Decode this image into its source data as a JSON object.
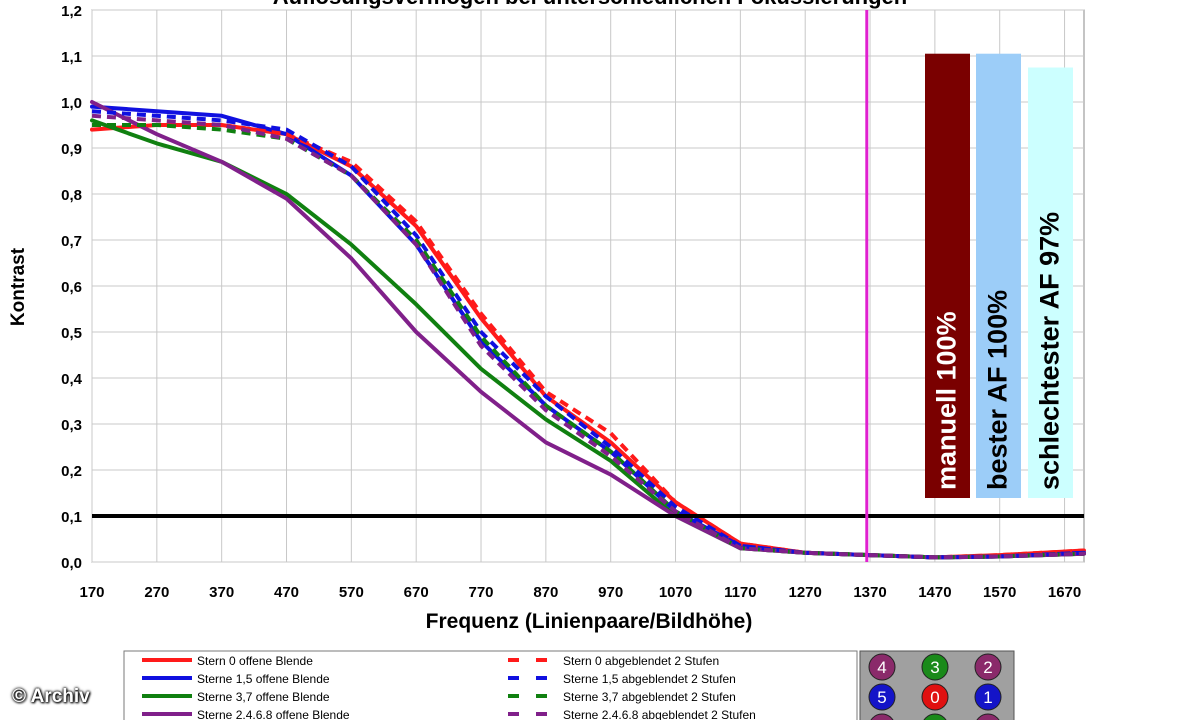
{
  "chart_data": {
    "type": "line",
    "title": "Auflösungsvermögen bei unterschiedlichen Fokussierungen",
    "xlabel": "Frequenz (Linienpaare/Bildhöhe)",
    "ylabel": "Kontrast",
    "xlim": [
      170,
      1700
    ],
    "ylim": [
      0,
      1.2
    ],
    "x_ticks": [
      "170",
      "270",
      "370",
      "470",
      "570",
      "670",
      "770",
      "870",
      "970",
      "1070",
      "1170",
      "1270",
      "1370",
      "1470",
      "1570",
      "1670"
    ],
    "y_ticks": [
      "0,0",
      "0,1",
      "0,2",
      "0,3",
      "0,4",
      "0,5",
      "0,6",
      "0,7",
      "0,8",
      "0,9",
      "1,0",
      "1,1",
      "1,2"
    ],
    "grid": true,
    "threshold_line": {
      "y": 0.1,
      "color": "#000000"
    },
    "marker_line": {
      "x": 1365,
      "color": "#e020d0"
    },
    "series": [
      {
        "name": "Stern 0 offene Blende",
        "color": "#ff1a1a",
        "style": "solid",
        "x": [
          170,
          270,
          370,
          470,
          570,
          670,
          770,
          870,
          970,
          1070,
          1170,
          1270,
          1370,
          1470,
          1570,
          1700
        ],
        "y": [
          0.94,
          0.95,
          0.95,
          0.93,
          0.86,
          0.73,
          0.53,
          0.36,
          0.26,
          0.13,
          0.04,
          0.02,
          0.015,
          0.01,
          0.015,
          0.025
        ]
      },
      {
        "name": "Sterne 1,5 offene Blende",
        "color": "#1010e0",
        "style": "solid",
        "x": [
          170,
          270,
          370,
          470,
          570,
          670,
          770,
          870,
          970,
          1070,
          1170,
          1270,
          1370,
          1470,
          1570,
          1700
        ],
        "y": [
          0.99,
          0.98,
          0.97,
          0.93,
          0.84,
          0.69,
          0.48,
          0.34,
          0.24,
          0.11,
          0.035,
          0.02,
          0.015,
          0.01,
          0.012,
          0.02
        ]
      },
      {
        "name": "Sterne 3,7 offene Blende",
        "color": "#108010",
        "style": "solid",
        "x": [
          170,
          270,
          370,
          470,
          570,
          670,
          770,
          870,
          970,
          1070,
          1170,
          1270,
          1370,
          1470,
          1570,
          1700
        ],
        "y": [
          0.96,
          0.91,
          0.87,
          0.8,
          0.69,
          0.56,
          0.42,
          0.31,
          0.22,
          0.1,
          0.03,
          0.02,
          0.015,
          0.01,
          0.012,
          0.018
        ]
      },
      {
        "name": "Sterne 2,4,6,8 offene Blende",
        "color": "#80208a",
        "style": "solid",
        "x": [
          170,
          270,
          370,
          470,
          570,
          670,
          770,
          870,
          970,
          1070,
          1170,
          1270,
          1370,
          1470,
          1570,
          1700
        ],
        "y": [
          1.0,
          0.93,
          0.87,
          0.79,
          0.66,
          0.5,
          0.37,
          0.26,
          0.19,
          0.1,
          0.03,
          0.02,
          0.015,
          0.01,
          0.012,
          0.018
        ]
      },
      {
        "name": "Stern 0 abgeblendet 2 Stufen",
        "color": "#ff1a1a",
        "style": "dashed",
        "x": [
          170,
          270,
          370,
          470,
          570,
          670,
          770,
          870,
          970,
          1070,
          1170,
          1270,
          1370,
          1470,
          1570,
          1700
        ],
        "y": [
          0.95,
          0.95,
          0.95,
          0.93,
          0.87,
          0.74,
          0.54,
          0.37,
          0.28,
          0.13,
          0.04,
          0.02,
          0.015,
          0.01,
          0.015,
          0.025
        ]
      },
      {
        "name": "Sterne 1,5 abgeblendet 2 Stufen",
        "color": "#1010e0",
        "style": "dashed",
        "x": [
          170,
          270,
          370,
          470,
          570,
          670,
          770,
          870,
          970,
          1070,
          1170,
          1270,
          1370,
          1470,
          1570,
          1700
        ],
        "y": [
          0.98,
          0.97,
          0.96,
          0.94,
          0.86,
          0.71,
          0.5,
          0.36,
          0.25,
          0.12,
          0.035,
          0.02,
          0.015,
          0.01,
          0.012,
          0.02
        ]
      },
      {
        "name": "Sterne 3,7 abgeblendet 2 Stufen",
        "color": "#108010",
        "style": "dashed",
        "x": [
          170,
          270,
          370,
          470,
          570,
          670,
          770,
          870,
          970,
          1070,
          1170,
          1270,
          1370,
          1470,
          1570,
          1700
        ],
        "y": [
          0.95,
          0.95,
          0.94,
          0.92,
          0.84,
          0.7,
          0.49,
          0.34,
          0.24,
          0.11,
          0.03,
          0.02,
          0.015,
          0.01,
          0.012,
          0.018
        ]
      },
      {
        "name": "Sterne 2,4,6,8 abgeblendet 2 Stufen",
        "color": "#80208a",
        "style": "dashed",
        "x": [
          170,
          270,
          370,
          470,
          570,
          670,
          770,
          870,
          970,
          1070,
          1170,
          1270,
          1370,
          1470,
          1570,
          1700
        ],
        "y": [
          0.97,
          0.96,
          0.95,
          0.92,
          0.84,
          0.69,
          0.47,
          0.33,
          0.23,
          0.11,
          0.03,
          0.02,
          0.015,
          0.01,
          0.012,
          0.018
        ]
      }
    ],
    "bars": [
      {
        "label": "manuell 100%",
        "color": "#7a0000",
        "text_color": "#ffffff",
        "value": 1.105
      },
      {
        "label": "bester AF 100%",
        "color": "#9ccdf8",
        "text_color": "#000000",
        "value": 1.105
      },
      {
        "label": "schlechtester AF 97%",
        "color": "#ccffff",
        "text_color": "#000000",
        "value": 1.075
      }
    ]
  },
  "legend": {
    "items": [
      "Stern 0 offene Blende",
      "Sterne 1,5 offene Blende",
      "Sterne 3,7 offene Blende",
      "Sterne 2.4.6.8 offene Blende",
      "Stern 0 abgeblendet 2 Stufen",
      "Sterne 1,5 abgeblendet 2 Stufen",
      "Sterne 3,7 abgeblendet 2 Stufen",
      "Sterne 2.4.6.8 abgeblendet 2 Stufen"
    ]
  },
  "star_grid": {
    "items": [
      {
        "label": "4",
        "color": "#8a2a6a"
      },
      {
        "label": "3",
        "color": "#1a8a1a"
      },
      {
        "label": "2",
        "color": "#8a2a6a"
      },
      {
        "label": "5",
        "color": "#1414c8"
      },
      {
        "label": "0",
        "color": "#e01010"
      },
      {
        "label": "1",
        "color": "#1414c8"
      }
    ]
  },
  "copyright": "© Archiv"
}
